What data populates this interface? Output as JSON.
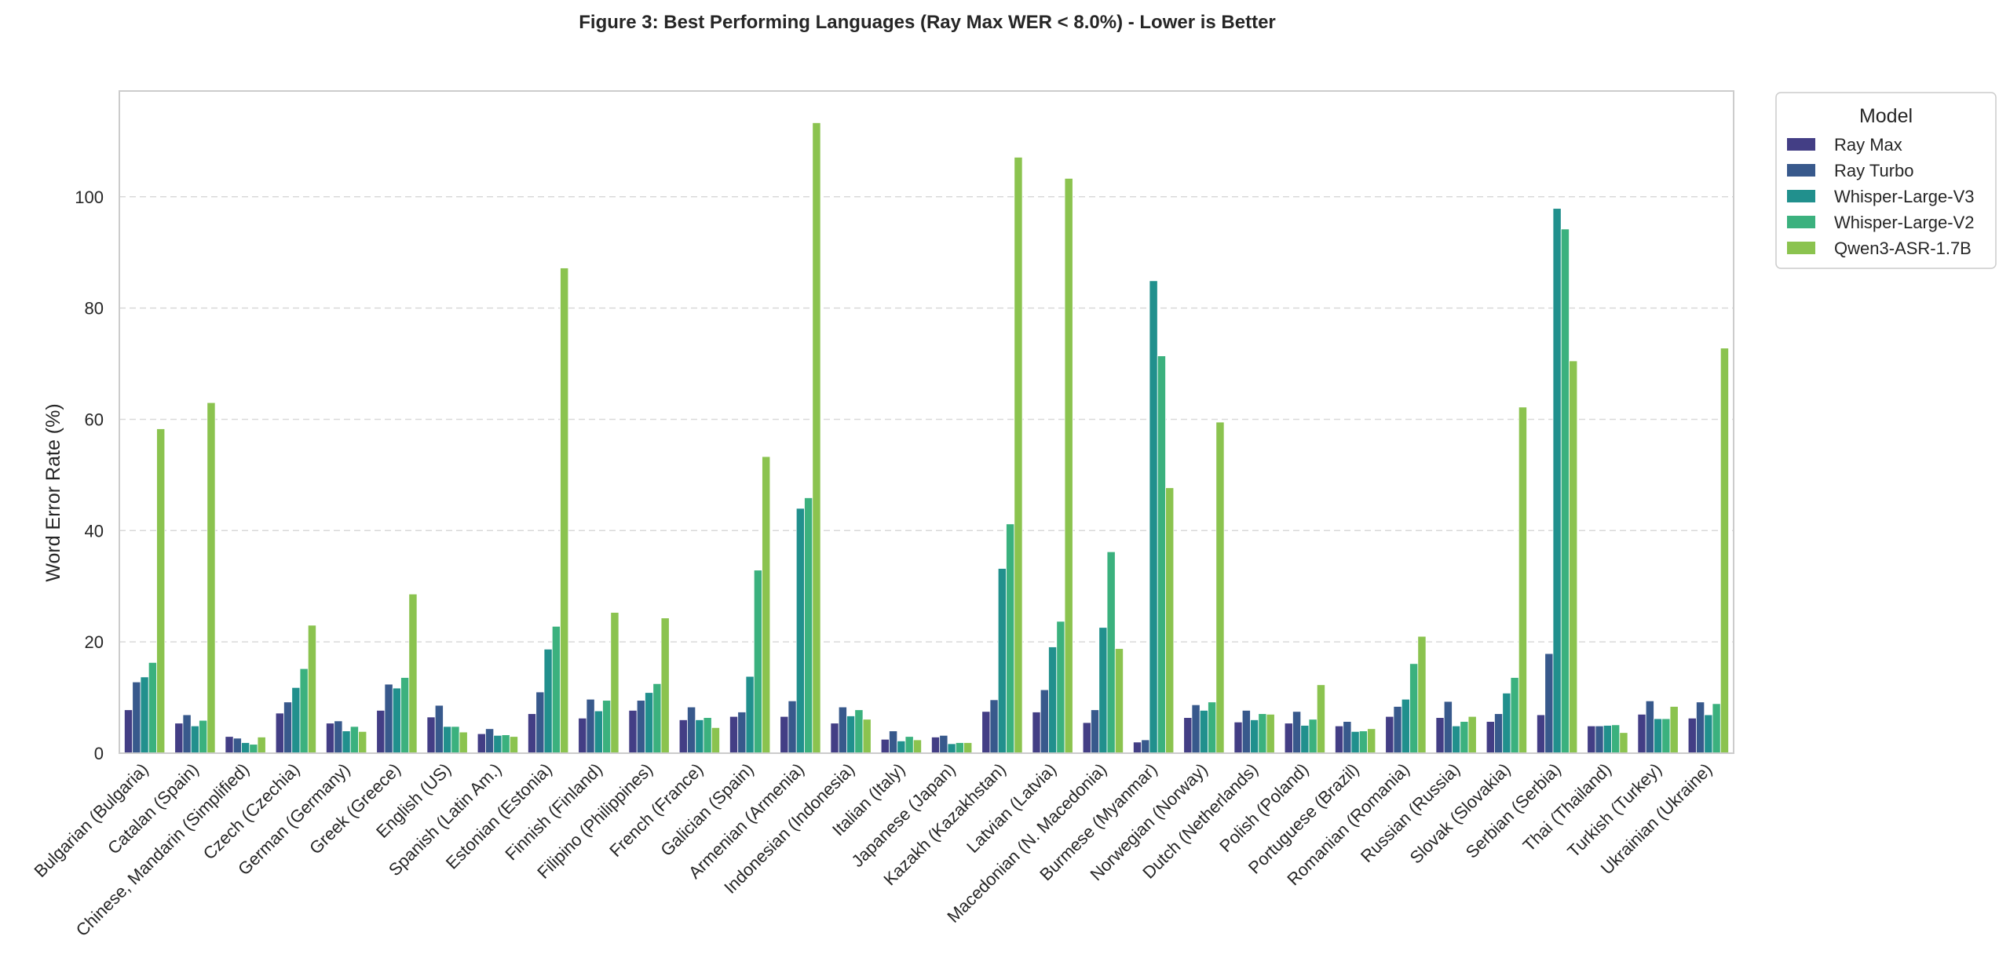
{
  "chart_data": {
    "type": "bar",
    "title": "Figure 3: Best Performing Languages (Ray Max WER < 8.0%) - Lower is Better",
    "xlabel": "",
    "ylabel": "Word Error Rate (%)",
    "ylim": [
      0,
      119
    ],
    "yticks": [
      0,
      20,
      40,
      60,
      80,
      100
    ],
    "grid": "horizontal dashed",
    "legend": {
      "title": "Model",
      "placement": "outside-top-right"
    },
    "categories": [
      "Bulgarian (Bulgaria)",
      "Catalan (Spain)",
      "Chinese, Mandarin (Simplified)",
      "Czech (Czechia)",
      "German (Germany)",
      "Greek (Greece)",
      "English (US)",
      "Spanish (Latin Am.)",
      "Estonian (Estonia)",
      "Finnish (Finland)",
      "Filipino (Philippines)",
      "French (France)",
      "Galician (Spain)",
      "Armenian (Armenia)",
      "Indonesian (Indonesia)",
      "Italian (Italy)",
      "Japanese (Japan)",
      "Kazakh (Kazakhstan)",
      "Latvian (Latvia)",
      "Macedonian (N. Macedonia)",
      "Burmese (Myanmar)",
      "Norwegian (Norway)",
      "Dutch (Netherlands)",
      "Polish (Poland)",
      "Portuguese (Brazil)",
      "Romanian (Romania)",
      "Russian (Russia)",
      "Slovak (Slovakia)",
      "Serbian (Serbia)",
      "Thai (Thailand)",
      "Turkish (Turkey)",
      "Ukrainian (Ukraine)"
    ],
    "series": [
      {
        "name": "Ray Max",
        "color": "#433e85",
        "values": [
          7.8,
          5.4,
          3.0,
          7.2,
          5.4,
          7.7,
          6.5,
          3.5,
          7.1,
          6.3,
          7.7,
          6.0,
          6.6,
          6.6,
          5.4,
          2.5,
          2.9,
          7.5,
          7.4,
          5.5,
          2.0,
          6.4,
          5.6,
          5.4,
          4.9,
          6.6,
          6.4,
          5.7,
          6.9,
          4.9,
          7.0,
          6.3
        ]
      },
      {
        "name": "Ray Turbo",
        "color": "#38598c",
        "values": [
          12.8,
          6.9,
          2.7,
          9.2,
          5.8,
          12.4,
          8.6,
          4.4,
          11.0,
          9.7,
          9.5,
          8.3,
          7.4,
          9.4,
          8.3,
          4.0,
          3.2,
          9.6,
          11.4,
          7.8,
          2.4,
          8.7,
          7.7,
          7.5,
          5.7,
          8.4,
          9.3,
          7.1,
          17.9,
          4.9,
          9.4,
          9.2
        ]
      },
      {
        "name": "Whisper-Large-V3",
        "color": "#21908d",
        "values": [
          13.7,
          4.9,
          1.9,
          11.8,
          4.0,
          11.7,
          4.8,
          3.2,
          18.7,
          7.6,
          10.9,
          6.0,
          13.8,
          44.0,
          6.7,
          2.2,
          1.7,
          33.2,
          19.1,
          22.6,
          84.9,
          7.7,
          6.0,
          5.0,
          3.9,
          9.7,
          4.9,
          10.8,
          97.9,
          5.0,
          6.2,
          6.9
        ]
      },
      {
        "name": "Whisper-Large-V2",
        "color": "#3bb17e",
        "values": [
          16.3,
          5.9,
          1.6,
          15.2,
          4.8,
          13.6,
          4.8,
          3.3,
          22.8,
          9.5,
          12.5,
          6.4,
          32.9,
          45.9,
          7.8,
          3.0,
          1.9,
          41.2,
          23.7,
          36.2,
          71.4,
          9.2,
          7.1,
          6.1,
          4.0,
          16.1,
          5.7,
          13.6,
          94.2,
          5.1,
          6.2,
          8.9
        ]
      },
      {
        "name": "Qwen3-ASR-1.7B",
        "color": "#8bc34f",
        "values": [
          58.3,
          63.0,
          2.9,
          23.0,
          3.9,
          28.6,
          3.8,
          3.0,
          87.2,
          25.3,
          24.3,
          4.6,
          53.3,
          113.3,
          6.1,
          2.4,
          1.9,
          107.1,
          103.3,
          18.8,
          47.7,
          59.5,
          7.0,
          12.3,
          4.4,
          21.0,
          6.6,
          62.2,
          70.5,
          3.7,
          8.4,
          72.8
        ]
      }
    ]
  }
}
